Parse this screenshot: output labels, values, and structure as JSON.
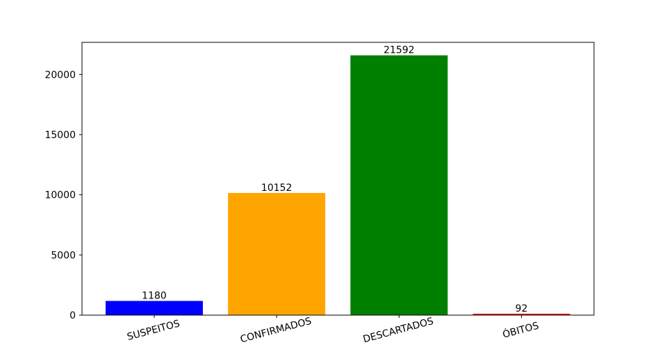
{
  "chart_data": {
    "type": "bar",
    "categories": [
      "SUSPEITOS",
      "CONFIRMADOS",
      "DESCARTADOS",
      "ÓBITOS"
    ],
    "values": [
      1180,
      10152,
      21592,
      92
    ],
    "colors": [
      "#0000ff",
      "#ffa500",
      "#008000",
      "#ff0000"
    ],
    "data_labels": [
      "1180",
      "10152",
      "21592",
      "92"
    ],
    "yticks": [
      0,
      5000,
      10000,
      15000,
      20000
    ],
    "ytick_labels": [
      "0",
      "5000",
      "10000",
      "15000",
      "20000"
    ],
    "ylim": [
      0,
      22671
    ],
    "xtick_rotation_deg": -15,
    "grid": false,
    "legend": "none",
    "title": "",
    "xlabel": "",
    "ylabel": ""
  }
}
